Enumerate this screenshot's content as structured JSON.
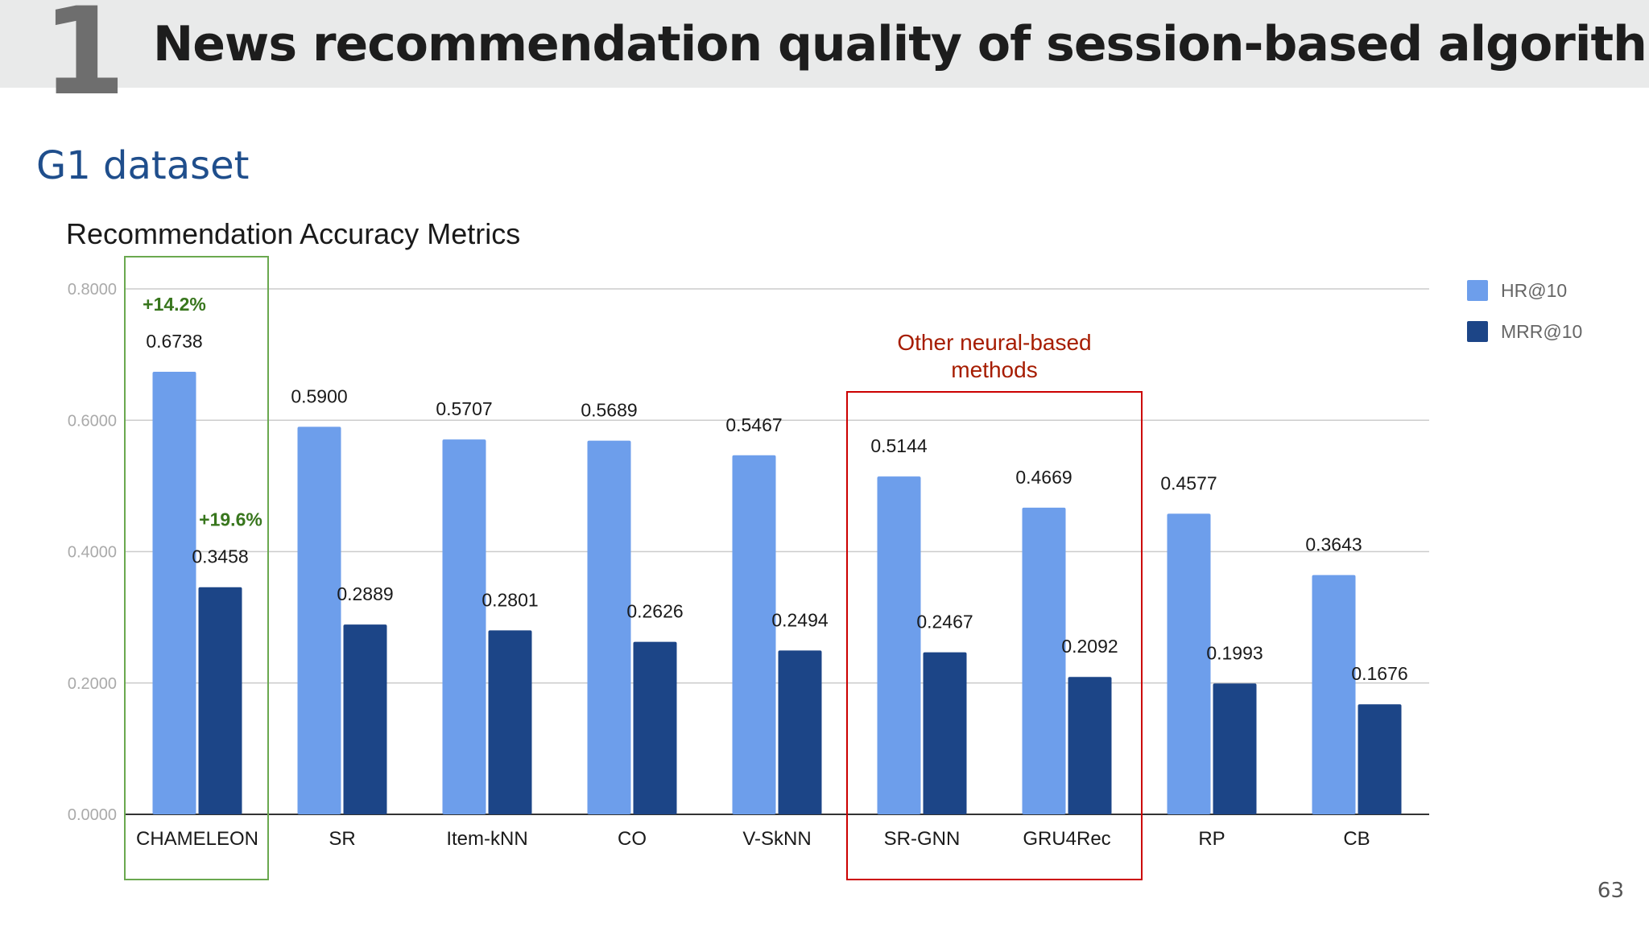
{
  "slide": {
    "section_number": "1",
    "title": "News recommendation quality of session-based algorithms",
    "dataset_label": "G1 dataset",
    "page_number": "63"
  },
  "chart_data": {
    "type": "bar",
    "title": "Recommendation Accuracy Metrics",
    "xlabel": "",
    "ylabel": "",
    "ylim": [
      0,
      0.8
    ],
    "yticks": [
      "0.0000",
      "0.2000",
      "0.4000",
      "0.6000",
      "0.8000"
    ],
    "grid": true,
    "legend_position": "top-right",
    "categories": [
      "CHAMELEON",
      "SR",
      "Item-kNN",
      "CO",
      "V-SkNN",
      "SR-GNN",
      "GRU4Rec",
      "RP",
      "CB"
    ],
    "series": [
      {
        "name": "HR@10",
        "color": "#6d9eeb",
        "values": [
          0.6738,
          0.59,
          0.5707,
          0.5689,
          0.5467,
          0.5144,
          0.4669,
          0.4577,
          0.3643
        ],
        "labels": [
          "0.6738",
          "0.5900",
          "0.5707",
          "0.5689",
          "0.5467",
          "0.5144",
          "0.4669",
          "0.4577",
          "0.3643"
        ]
      },
      {
        "name": "MRR@10",
        "color": "#1c4587",
        "values": [
          0.3458,
          0.2889,
          0.2801,
          0.2626,
          0.2494,
          0.2467,
          0.2092,
          0.1993,
          0.1676
        ],
        "labels": [
          "0.3458",
          "0.2889",
          "0.2801",
          "0.2626",
          "0.2494",
          "0.2467",
          "0.2092",
          "0.1993",
          "0.1676"
        ]
      }
    ],
    "annotations": [
      {
        "category": "CHAMELEON",
        "series": "HR@10",
        "text": "+14.2%",
        "color": "#38761d"
      },
      {
        "category": "CHAMELEON",
        "series": "MRR@10",
        "text": "+19.6%",
        "color": "#38761d"
      }
    ],
    "highlight_boxes": [
      {
        "categories": [
          "CHAMELEON"
        ],
        "color": "#6aa84f",
        "label": ""
      },
      {
        "categories": [
          "SR-GNN",
          "GRU4Rec"
        ],
        "color": "#cc0000",
        "label": [
          "Other neural-based",
          "methods"
        ],
        "label_color": "#a61c00"
      }
    ]
  }
}
